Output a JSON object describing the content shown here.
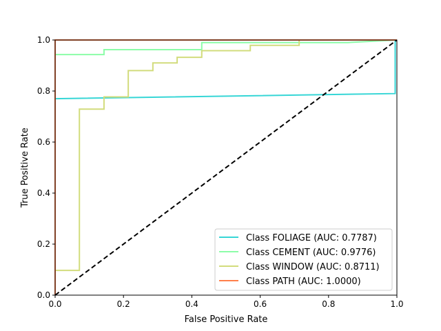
{
  "chart_data": {
    "type": "line",
    "title": "",
    "xlabel": "False Positive Rate",
    "ylabel": "True Positive Rate",
    "xlim": [
      0,
      1
    ],
    "ylim": [
      0,
      1
    ],
    "x_ticks": [
      0.0,
      0.2,
      0.4,
      0.6,
      0.8,
      1.0
    ],
    "y_ticks": [
      0.0,
      0.2,
      0.4,
      0.6,
      0.8,
      1.0
    ],
    "x_tick_labels": [
      "0.0",
      "0.2",
      "0.4",
      "0.6",
      "0.8",
      "1.0"
    ],
    "y_tick_labels": [
      "0.0",
      "0.2",
      "0.4",
      "0.6",
      "0.8",
      "1.0"
    ],
    "grid": false,
    "legend_position": "lower-right",
    "diagonal": {
      "x": [
        0,
        1
      ],
      "y": [
        0,
        1
      ],
      "color": "#000000",
      "style": "dashed"
    },
    "series": [
      {
        "name": "Class FOLIAGE (AUC: 0.7787)",
        "color": "#36d6d6",
        "x": [
          0.0,
          0.0,
          0.995,
          0.995,
          1.0
        ],
        "y": [
          0.0,
          0.77,
          0.79,
          1.0,
          1.0
        ]
      },
      {
        "name": "Class CEMENT (AUC: 0.9776)",
        "color": "#8cfda8",
        "x": [
          0.0,
          0.0,
          0.143,
          0.143,
          0.429,
          0.429,
          0.857,
          1.0
        ],
        "y": [
          0.0,
          0.943,
          0.943,
          0.962,
          0.962,
          0.99,
          0.99,
          1.0
        ]
      },
      {
        "name": "Class WINDOW (AUC: 0.8711)",
        "color": "#d2dc7c",
        "x": [
          0.0,
          0.0,
          0.071,
          0.071,
          0.143,
          0.143,
          0.214,
          0.214,
          0.286,
          0.286,
          0.357,
          0.357,
          0.429,
          0.429,
          0.571,
          0.571,
          0.714,
          0.714,
          1.0
        ],
        "y": [
          0.0,
          0.097,
          0.097,
          0.729,
          0.729,
          0.777,
          0.777,
          0.88,
          0.88,
          0.91,
          0.91,
          0.932,
          0.932,
          0.958,
          0.958,
          0.979,
          0.979,
          1.0,
          1.0
        ]
      },
      {
        "name": "Class PATH (AUC: 1.0000)",
        "color": "#ff7f4a",
        "x": [
          0.0,
          0.0,
          1.0
        ],
        "y": [
          0.0,
          1.0,
          1.0
        ]
      }
    ]
  }
}
